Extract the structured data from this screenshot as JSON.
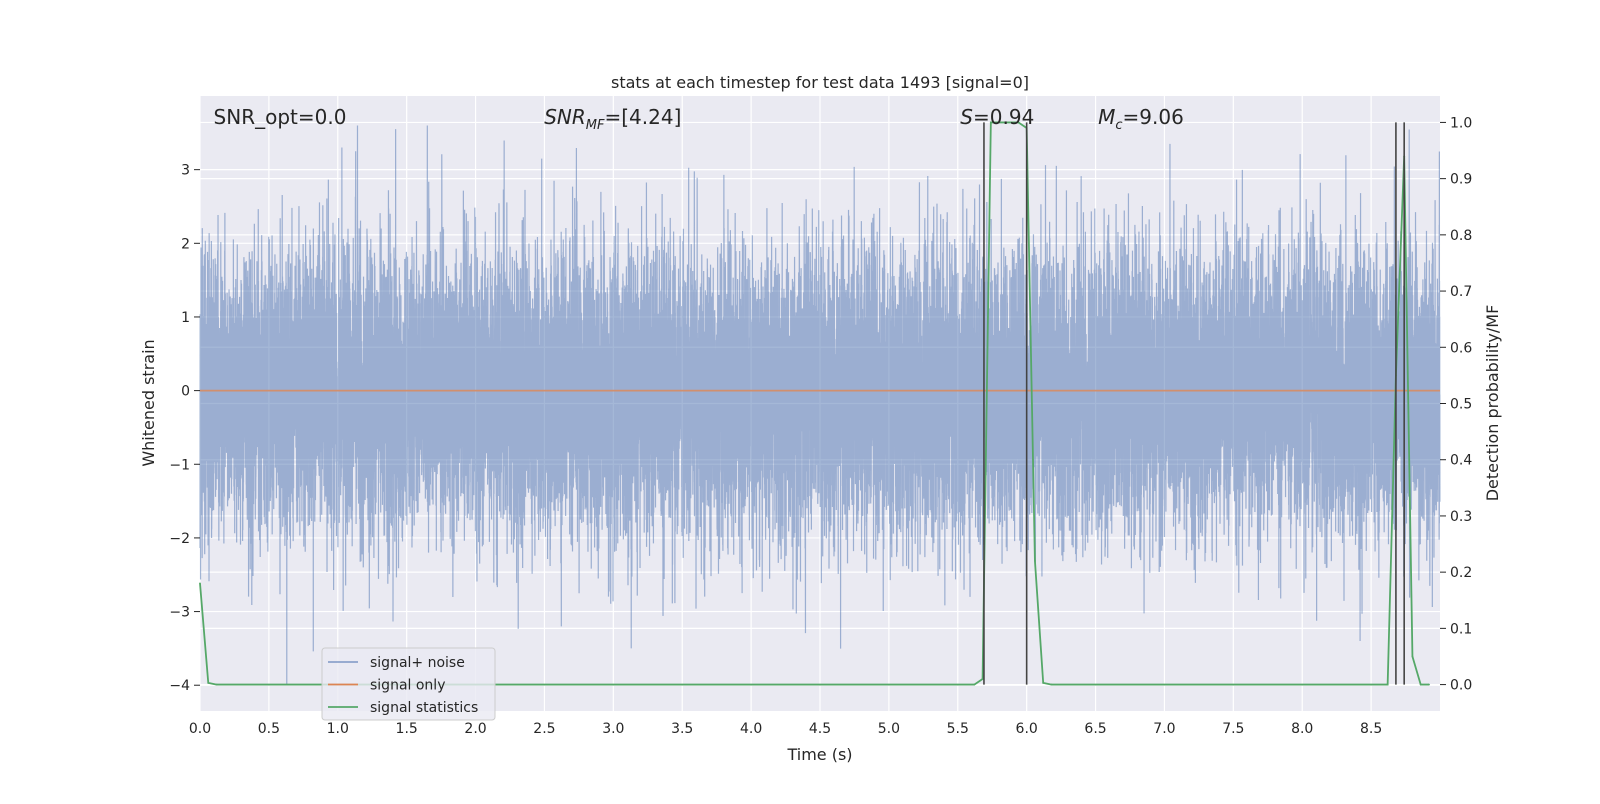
{
  "chart_data": {
    "type": "line",
    "title": "stats at each timestep for test data 1493 [signal=0]",
    "xlabel": "Time (s)",
    "ylabel": "Whitened strain",
    "ylabel_right": "Detection probability/MF",
    "xlim": [
      0.0,
      9.0
    ],
    "ylim": [
      -4.35,
      4.0
    ],
    "ylim_right": [
      -0.047,
      1.047
    ],
    "x_ticks": [
      0.0,
      0.5,
      1.0,
      1.5,
      2.0,
      2.5,
      3.0,
      3.5,
      4.0,
      4.5,
      5.0,
      5.5,
      6.0,
      6.5,
      7.0,
      7.5,
      8.0,
      8.5
    ],
    "x_tick_labels": [
      "0.0",
      "0.5",
      "1.0",
      "1.5",
      "2.0",
      "2.5",
      "3.0",
      "3.5",
      "4.0",
      "4.5",
      "5.0",
      "5.5",
      "6.0",
      "6.5",
      "7.0",
      "7.5",
      "8.0",
      "8.5"
    ],
    "y_ticks": [
      -4,
      -3,
      -2,
      -1,
      0,
      1,
      2,
      3
    ],
    "y_tick_labels": [
      "−4",
      "−3",
      "−2",
      "−1",
      "0",
      "1",
      "2",
      "3"
    ],
    "y_right_ticks": [
      0.0,
      0.1,
      0.2,
      0.3,
      0.4,
      0.5,
      0.6,
      0.7,
      0.8,
      0.9,
      1.0
    ],
    "y_right_tick_labels": [
      "0.0",
      "0.1",
      "0.2",
      "0.3",
      "0.4",
      "0.5",
      "0.6",
      "0.7",
      "0.8",
      "0.9",
      "1.0"
    ],
    "grid": true,
    "legend_placement": "lower-left",
    "annotations": [
      {
        "key": "snr_opt",
        "text": "SNR_opt=0.0",
        "at_x": 0.2
      },
      {
        "key": "snr_mf",
        "text": "SNR",
        "sub": "MF",
        "after": "=[4.24]",
        "at_x": 2.6
      },
      {
        "key": "s",
        "text": "S",
        "after": "=0.94",
        "at_x": 5.62
      },
      {
        "key": "mc",
        "text": "M",
        "sub": "c",
        "after": "=9.06",
        "at_x": 6.62
      }
    ],
    "series": [
      {
        "name": "signal+ noise",
        "color": "#4c72b0",
        "axis": "left",
        "kind": "noise",
        "sample_rate_hz": 2048,
        "amplitude_envelope": [
          -4.0,
          3.6
        ],
        "peaks": [
          {
            "x": 0.63,
            "y": -4.0
          },
          {
            "x": 1.03,
            "y": 3.3
          },
          {
            "x": 1.13,
            "y": 3.25
          },
          {
            "x": 1.42,
            "y": 3.55
          },
          {
            "x": 2.48,
            "y": 3.15
          },
          {
            "x": 3.13,
            "y": -3.5
          },
          {
            "x": 5.68,
            "y": -2.3
          },
          {
            "x": 7.04,
            "y": 3.35
          },
          {
            "x": 8.42,
            "y": -3.4
          }
        ]
      },
      {
        "name": "signal only",
        "color": "#dd8452",
        "axis": "left",
        "x": [
          0.0,
          9.0
        ],
        "y": [
          0.0,
          0.0
        ]
      },
      {
        "name": "signal statistics",
        "color": "#55a868",
        "axis": "right",
        "x": [
          0.0,
          0.06,
          0.12,
          5.62,
          5.68,
          5.74,
          5.8,
          5.94,
          6.0,
          6.06,
          6.12,
          6.18,
          8.62,
          8.68,
          8.74,
          8.8,
          8.86,
          8.92
        ],
        "y": [
          0.18,
          0.003,
          0.0,
          0.0,
          0.01,
          1.0,
          1.0,
          1.0,
          0.99,
          0.22,
          0.003,
          0.0,
          0.0,
          0.55,
          0.94,
          0.05,
          0.0,
          0.0
        ]
      }
    ],
    "vertical_lines": [
      {
        "x": 5.69,
        "y_from": 0.0,
        "y_to": 1.0,
        "color": "#444444"
      },
      {
        "x": 6.0,
        "y_from": 0.0,
        "y_to": 1.0,
        "color": "#444444"
      },
      {
        "x": 8.68,
        "y_from": 0.0,
        "y_to": 1.0,
        "color": "#444444"
      },
      {
        "x": 8.74,
        "y_from": 0.0,
        "y_to": 1.0,
        "color": "#444444"
      }
    ],
    "colors": {
      "plot_background": "#eaeaf2",
      "grid": "#ffffff",
      "text": "#262626"
    }
  }
}
